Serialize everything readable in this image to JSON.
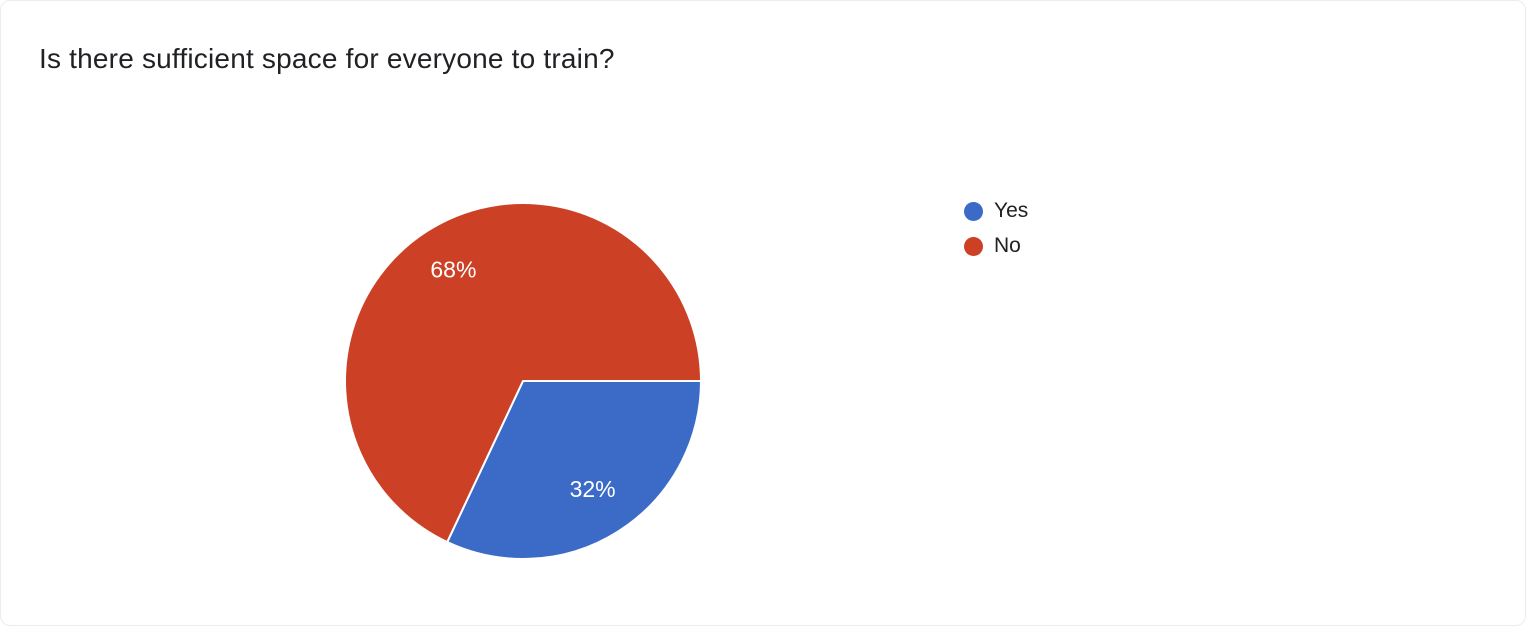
{
  "page": {
    "title": "Is there sufficient space for everyone to train?"
  },
  "chart_data": {
    "type": "pie",
    "title": "Is there sufficient space for everyone to train?",
    "categories": [
      "Yes",
      "No"
    ],
    "values": [
      32,
      68
    ],
    "slice_labels": [
      "32%",
      "68%"
    ],
    "colors": [
      "#3C6BC7",
      "#CC4125"
    ],
    "label_color": "#ffffff",
    "legend_position": "right",
    "start_angle_deg": 0,
    "direction": "clockwise"
  }
}
